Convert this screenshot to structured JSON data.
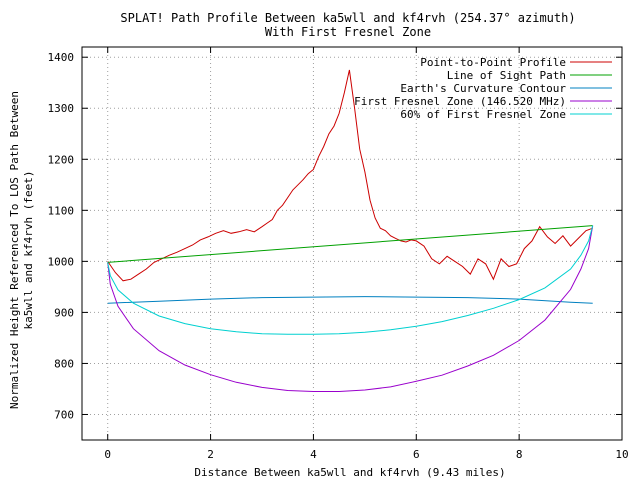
{
  "chart_data": {
    "type": "line",
    "title": "SPLAT! Path Profile Between ka5wll and kf4rvh (254.37° azimuth)",
    "subtitle": "With First Fresnel Zone",
    "xlabel": "Distance Between ka5wll and kf4rvh (9.43 miles)",
    "ylabel_lines": [
      "Normalized Height Referenced To LOS Path Between",
      "ka5wll and kf4rvh (feet)"
    ],
    "xlim": [
      -0.5,
      10
    ],
    "ylim": [
      650,
      1420
    ],
    "x_ticks": [
      0,
      2,
      4,
      6,
      8,
      10
    ],
    "y_ticks": [
      700,
      800,
      900,
      1000,
      1100,
      1200,
      1300,
      1400
    ],
    "grid": true,
    "legend_position": "top-right",
    "series": [
      {
        "name": "Point-to-Point Profile",
        "color": "#cc0000",
        "x": [
          0,
          0.15,
          0.3,
          0.45,
          0.6,
          0.75,
          0.9,
          1.05,
          1.2,
          1.35,
          1.5,
          1.65,
          1.8,
          1.95,
          2.1,
          2.25,
          2.4,
          2.55,
          2.7,
          2.85,
          3.0,
          3.1,
          3.2,
          3.3,
          3.4,
          3.5,
          3.6,
          3.7,
          3.8,
          3.9,
          4.0,
          4.1,
          4.2,
          4.3,
          4.4,
          4.5,
          4.6,
          4.7,
          4.8,
          4.9,
          5.0,
          5.1,
          5.2,
          5.3,
          5.4,
          5.5,
          5.6,
          5.7,
          5.8,
          5.9,
          6.0,
          6.15,
          6.3,
          6.45,
          6.6,
          6.75,
          6.9,
          7.05,
          7.2,
          7.35,
          7.5,
          7.65,
          7.8,
          7.95,
          8.1,
          8.25,
          8.4,
          8.55,
          8.7,
          8.85,
          9.0,
          9.15,
          9.3,
          9.43
        ],
        "values": [
          1000,
          978,
          962,
          965,
          975,
          985,
          998,
          1005,
          1012,
          1018,
          1025,
          1032,
          1042,
          1048,
          1055,
          1060,
          1055,
          1058,
          1062,
          1058,
          1068,
          1075,
          1082,
          1100,
          1110,
          1125,
          1140,
          1150,
          1160,
          1172,
          1180,
          1205,
          1225,
          1250,
          1265,
          1290,
          1330,
          1375,
          1300,
          1220,
          1175,
          1120,
          1085,
          1065,
          1060,
          1050,
          1045,
          1040,
          1038,
          1042,
          1040,
          1030,
          1005,
          995,
          1010,
          1000,
          990,
          975,
          1005,
          995,
          965,
          1005,
          990,
          995,
          1025,
          1040,
          1068,
          1048,
          1035,
          1050,
          1030,
          1045,
          1060,
          1065
        ]
      },
      {
        "name": "Line of Sight Path",
        "color": "#00a000",
        "x": [
          0,
          9.43
        ],
        "values": [
          998,
          1070
        ]
      },
      {
        "name": "Earth's Curvature Contour",
        "color": "#0080c0",
        "x": [
          0,
          1,
          2,
          3,
          4,
          5,
          6,
          7,
          8,
          9,
          9.43
        ],
        "values": [
          918,
          922,
          926,
          929,
          930,
          931,
          930,
          929,
          926,
          920,
          918
        ]
      },
      {
        "name": "First Fresnel Zone (146.520 MHz)",
        "color": "#9900cc",
        "x": [
          0,
          0.05,
          0.2,
          0.5,
          1,
          1.5,
          2,
          2.5,
          3,
          3.5,
          4,
          4.5,
          5,
          5.5,
          6,
          6.5,
          7,
          7.5,
          8,
          8.5,
          9,
          9.2,
          9.35,
          9.43
        ],
        "values": [
          998,
          955,
          912,
          868,
          825,
          797,
          778,
          763,
          753,
          747,
          745,
          745,
          748,
          754,
          765,
          777,
          795,
          816,
          845,
          885,
          945,
          985,
          1025,
          1070
        ]
      },
      {
        "name": "60% of First Fresnel Zone",
        "color": "#00d0d0",
        "x": [
          0,
          0.05,
          0.2,
          0.5,
          1,
          1.5,
          2,
          2.5,
          3,
          3.5,
          4,
          4.5,
          5,
          5.5,
          6,
          6.5,
          7,
          7.5,
          8,
          8.5,
          9,
          9.2,
          9.35,
          9.43
        ],
        "values": [
          998,
          972,
          944,
          918,
          893,
          878,
          868,
          862,
          858,
          857,
          857,
          858,
          861,
          866,
          873,
          882,
          894,
          908,
          925,
          948,
          985,
          1012,
          1040,
          1070
        ]
      }
    ]
  }
}
